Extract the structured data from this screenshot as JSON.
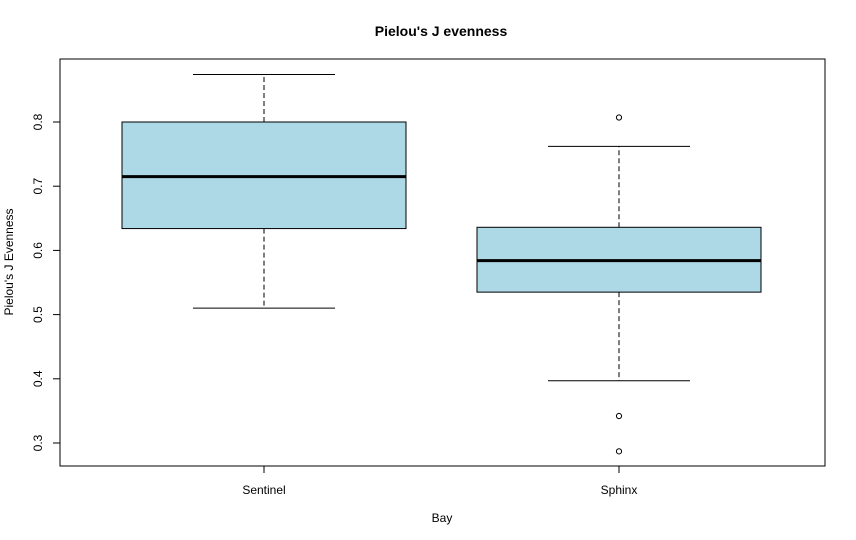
{
  "chart_data": {
    "type": "box",
    "title": "Pielou's J evenness",
    "xlabel": "Bay",
    "ylabel": "Pielou's J Evenness",
    "categories": [
      "Sentinel",
      "Sphinx"
    ],
    "yticks": [
      "0.3",
      "0.4",
      "0.5",
      "0.6",
      "0.7",
      "0.8"
    ],
    "ylim": [
      0.265,
      0.9
    ],
    "grid": false,
    "box_color": "#add8e6",
    "boxes": [
      {
        "name": "Sentinel",
        "whisker_low": 0.51,
        "q1": 0.634,
        "median": 0.715,
        "q3": 0.8,
        "whisker_high": 0.874,
        "outliers": []
      },
      {
        "name": "Sphinx",
        "whisker_low": 0.397,
        "q1": 0.535,
        "median": 0.584,
        "q3": 0.636,
        "whisker_high": 0.762,
        "outliers": [
          0.807,
          0.342,
          0.287
        ]
      }
    ]
  }
}
